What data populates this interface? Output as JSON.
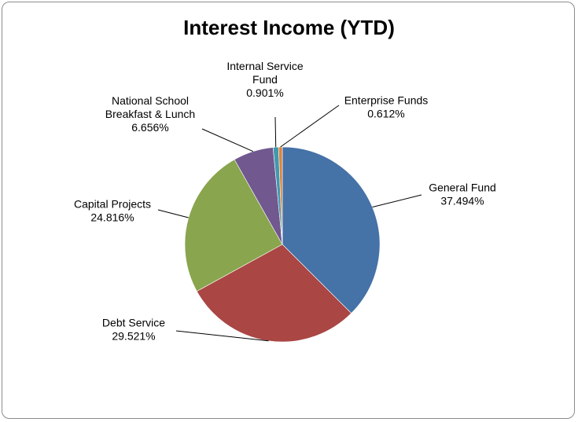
{
  "chart_data": {
    "type": "pie",
    "title": "Interest Income (YTD)",
    "slices": [
      {
        "label_lines": [
          "General Fund"
        ],
        "pct_label": "37.494%",
        "value": 37.494,
        "color": "#4572a7"
      },
      {
        "label_lines": [
          "Debt Service"
        ],
        "pct_label": "29.521%",
        "value": 29.521,
        "color": "#aa4643"
      },
      {
        "label_lines": [
          "Capital Projects"
        ],
        "pct_label": "24.816%",
        "value": 24.816,
        "color": "#89a54e"
      },
      {
        "label_lines": [
          "National School",
          "Breakfast & Lunch"
        ],
        "pct_label": "6.656%",
        "value": 6.656,
        "color": "#71588f"
      },
      {
        "label_lines": [
          "Internal Service",
          "Fund"
        ],
        "pct_label": "0.901%",
        "value": 0.901,
        "color": "#4198af"
      },
      {
        "label_lines": [
          "Enterprise Funds"
        ],
        "pct_label": "0.612%",
        "value": 0.612,
        "color": "#db843d"
      }
    ],
    "legend": "none"
  }
}
